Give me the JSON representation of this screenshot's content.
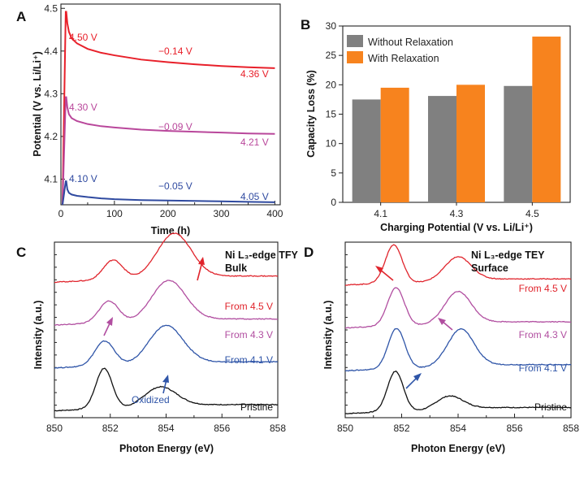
{
  "chart_data": [
    {
      "panel": "A",
      "type": "line",
      "xlabel": "Time (h)",
      "ylabel": "Potential (V vs. Li/Li⁺)",
      "xlim": [
        0,
        410
      ],
      "ylim": [
        4.04,
        4.51
      ],
      "xticks": [
        0,
        100,
        200,
        300,
        400
      ],
      "yticks": [
        4.1,
        4.2,
        4.3,
        4.4,
        4.5
      ],
      "series": [
        {
          "name": "4.50 V",
          "color": "#e8202a",
          "start_label": "4.50 V",
          "drop_label": "−0.14 V",
          "end_label": "4.36 V",
          "x": [
            10,
            12,
            15,
            20,
            30,
            50,
            75,
            100,
            150,
            200,
            250,
            300,
            350,
            400
          ],
          "y": [
            4.492,
            4.465,
            4.445,
            4.43,
            4.418,
            4.405,
            4.396,
            4.39,
            4.38,
            4.374,
            4.369,
            4.365,
            4.362,
            4.36
          ]
        },
        {
          "name": "4.30 V",
          "color": "#b9479b",
          "start_label": "4.30 V",
          "drop_label": "−0.09 V",
          "end_label": "4.21 V",
          "x": [
            10,
            12,
            15,
            20,
            30,
            50,
            75,
            100,
            150,
            200,
            250,
            300,
            350,
            400
          ],
          "y": [
            4.292,
            4.268,
            4.252,
            4.243,
            4.236,
            4.229,
            4.224,
            4.221,
            4.216,
            4.213,
            4.211,
            4.209,
            4.207,
            4.206
          ]
        },
        {
          "name": "4.10 V",
          "color": "#2f4aa0",
          "start_label": "4.10 V",
          "drop_label": "−0.05 V",
          "end_label": "4.05 V",
          "x": [
            10,
            12,
            15,
            20,
            30,
            50,
            75,
            100,
            150,
            200,
            250,
            300,
            350,
            400
          ],
          "y": [
            4.095,
            4.076,
            4.068,
            4.064,
            4.061,
            4.058,
            4.055,
            4.053,
            4.051,
            4.05,
            4.049,
            4.048,
            4.047,
            4.046
          ]
        }
      ]
    },
    {
      "panel": "B",
      "type": "bar",
      "xlabel": "Charging Potential (V vs. Li/Li⁺)",
      "ylabel": "Capacity Loss (%)",
      "ylim": [
        0,
        30
      ],
      "yticks": [
        0,
        5,
        10,
        15,
        20,
        25,
        30
      ],
      "categories": [
        "4.1",
        "4.3",
        "4.5"
      ],
      "legend_position": "top-left",
      "series": [
        {
          "name": "Without Relaxation",
          "color": "#808080",
          "values": [
            17.5,
            18.1,
            19.8
          ]
        },
        {
          "name": "With Relaxation",
          "color": "#f7831e",
          "values": [
            19.5,
            20.0,
            28.2
          ]
        }
      ]
    },
    {
      "panel": "C",
      "type": "line",
      "title_line1": "Ni L₃-edge TFY",
      "title_line2": "Bulk",
      "xlabel": "Photon Energy (eV)",
      "ylabel": "Intensity (a.u.)",
      "xlim": [
        850,
        858
      ],
      "xticks": [
        850,
        852,
        854,
        856,
        858
      ],
      "annotation": "Oxidized",
      "series": [
        {
          "name": "Pristine",
          "color": "#111111",
          "offset": 0.0,
          "peaks": [
            [
              851.78,
              1.0,
              0.42
            ],
            [
              853.8,
              0.45,
              0.8
            ]
          ],
          "baseline": 0.15
        },
        {
          "name": "From 4.1 V",
          "color": "#2f55a8",
          "offset": 1.05,
          "peaks": [
            [
              851.8,
              0.62,
              0.5
            ],
            [
              854.0,
              0.9,
              0.85
            ]
          ],
          "baseline": 0.15
        },
        {
          "name": "From 4.3 V",
          "color": "#b14ea0",
          "offset": 2.1,
          "peaks": [
            [
              851.95,
              0.55,
              0.5
            ],
            [
              854.1,
              0.95,
              0.85
            ]
          ],
          "baseline": 0.15
        },
        {
          "name": "From 4.5 V",
          "color": "#e0242c",
          "offset": 3.15,
          "peaks": [
            [
              852.1,
              0.5,
              0.5
            ],
            [
              854.3,
              1.05,
              0.85
            ]
          ],
          "baseline": 0.15
        }
      ]
    },
    {
      "panel": "D",
      "type": "line",
      "title_line1": "Ni L₃-edge TEY",
      "title_line2": "Surface",
      "xlabel": "Photon Energy (eV)",
      "ylabel": "Intensity (a.u.)",
      "xlim": [
        850,
        858
      ],
      "xticks": [
        850,
        852,
        854,
        856,
        858
      ],
      "series": [
        {
          "name": "Pristine",
          "color": "#111111",
          "offset": 0.0,
          "peaks": [
            [
              851.78,
              1.0,
              0.4
            ],
            [
              853.7,
              0.3,
              0.65
            ]
          ],
          "baseline": 0.08
        },
        {
          "name": "From 4.1 V",
          "color": "#2f55a8",
          "offset": 1.05,
          "peaks": [
            [
              851.82,
              1.0,
              0.42
            ],
            [
              854.1,
              0.88,
              0.65
            ]
          ],
          "baseline": 0.08
        },
        {
          "name": "From 4.3 V",
          "color": "#b14ea0",
          "offset": 2.1,
          "peaks": [
            [
              851.8,
              0.95,
              0.42
            ],
            [
              854.0,
              0.75,
              0.65
            ]
          ],
          "baseline": 0.08
        },
        {
          "name": "From 4.5 V",
          "color": "#e0242c",
          "offset": 3.15,
          "peaks": [
            [
              851.72,
              0.95,
              0.42
            ],
            [
              854.0,
              0.55,
              0.65
            ]
          ],
          "baseline": 0.08
        }
      ]
    }
  ]
}
